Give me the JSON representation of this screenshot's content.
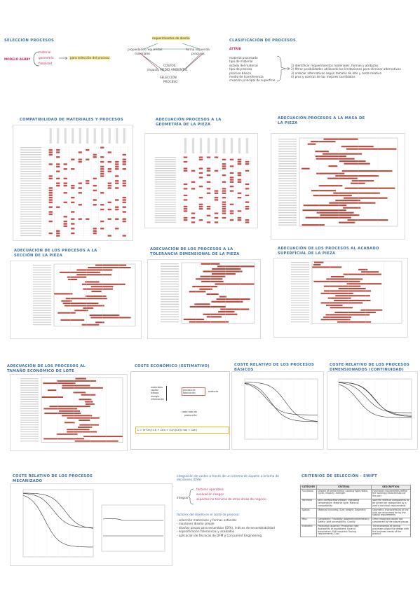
{
  "colors": {
    "heading": "#3b6fa8",
    "bar": "#b5483b",
    "marker": "#c0504d",
    "pink": "#e0507e",
    "green": "#3c8c5a",
    "yellow": "#e0c020"
  },
  "sec1": {
    "title": "SELECCIÓN PROCESOS",
    "modelo": "MODELO ASHBY",
    "items": [
      "material",
      "geometría",
      "fiabilidad"
    ],
    "arrow_note": "para selección del proceso"
  },
  "sec2": {
    "top": "requerimientos de diseño",
    "left": "propiedades requeridas",
    "left2": "materiales",
    "right": "forma requerida",
    "right2": "procesos",
    "costos": "COSTOS",
    "bottom": "impacto MEDIO AMBIENTAL",
    "sel": "SELECCIÓN",
    "sel2": "PROCESO"
  },
  "sec3": {
    "title": "CLASIFICACIÓN DE PROCESOS",
    "sub": "ATTRIB",
    "list": [
      "material procesado",
      "tipo de material",
      "estado del material",
      "tipo de proceso",
      "proceso básico",
      "medio de transferencia",
      "creación principal de superficie"
    ],
    "steps": [
      "1) identificar requerimientos materiales, formas y atributos",
      "2) filtrar posibilidades utilizando las limitaciones para eliminar alternativas",
      "3) ordenar alternativas según tamaño de lote y coste relativo",
      "4) pros y contras de las mejores candidatas"
    ]
  },
  "charts": {
    "c1": {
      "title": "COMPATIBILIDAD DE MATERIALES Y PROCESOS"
    },
    "c2": {
      "title": "ADECUACIÓN PROCESOS A LA GEOMETRÍA DE LA PIEZA"
    },
    "c3": {
      "title": "ADECUACIÓN PROCESOS A LA MASA DE LA PIEZA",
      "xlabel": "Mass (kg)"
    },
    "c4": {
      "title": "ADECUACIÓN DE LOS PROCESOS A LA SECCIÓN DE LA PIEZA",
      "xlabel": "Section thickness (mm)"
    },
    "c5": {
      "title": "ADECUACIÓN DE LOS PROCESOS A LA TOLERANCIA DIMENSIONAL DE LA PIEZA",
      "xlabel": "Tolerance (mm)"
    },
    "c6": {
      "title": "ADECUACIÓN DE LOS PROCESOS AL ACABADO SUPERFICIAL DE LA PIEZA",
      "xlabel": "Roughness (µm)"
    },
    "c7": {
      "title": "ADECUACIÓN DE LOS PROCESOS AL TAMAÑO ECONÓMICO DE LOTE",
      "xlabel": "Economic batch size (units)"
    },
    "c8": {
      "title": "COSTE ECONÓMICO (ESTIMATIVO)"
    },
    "c9": {
      "title": "COSTE RELATIVO DE LOS PROCESOS BÁSICOS"
    },
    "c10": {
      "title": "COSTE RELATIVO DE LOS PROCESOS DIMENSIONADOS (CONTINUIDAD)"
    },
    "c11": {
      "title": "COSTE RELATIVO DE LOS PROCESOS MECANIZADO"
    }
  },
  "cost_box": {
    "items": [
      "materiales",
      "capital",
      "trabajo",
      "energía",
      "información"
    ],
    "center": "proceso de fabricación",
    "right": "producto",
    "below": "coste total de",
    "below2": "producción",
    "formula": "C = m·Cm/(1-f) + Ct/n + (1/ṅ)(Cc/(L·tw) + Coh)"
  },
  "dss": {
    "title": "integración de costes a través de un sistema de soporte a la toma de decisiones (DSS)",
    "integrar": "integrar",
    "items": [
      "factores operables",
      "evaluación riesgos",
      "aspectos no técnicos de otras áreas de negocio"
    ],
    "factores_title": "factores del diseño en el coste de proceso:",
    "factores": [
      "- selección materiales y formas estándar",
      "- mantener diseño simple",
      "- diseñar piezas para ensamblar (DFA), índices de ensamblabilidad",
      "- especificación tolerancias y acabados",
      "- aplicación de técnicas de DFM y Concurrent Engineering"
    ]
  },
  "criterios": {
    "title": "CRITERIOS DE SELECCIÓN - SWIFT",
    "headers": [
      "CATEGORY",
      "CRITERIA",
      "DESCRIPTION"
    ],
    "rows": [
      [
        "Functional",
        "Degree of performance; Loading type (static, cyclic, impact); Strength",
        "Functional requirements define the working characteristics of the part"
      ],
      [
        "Technical",
        "Joint configuration/design; Operating temperature; Material type; Material compatibility",
        "Specific needs of components to be joined are categorised by a joint's technical requirements"
      ],
      [
        "Spatial",
        "Material thickness; Size; weight; Geometry",
        "Geometric characteristics of the joint are accounted for by the spatial requirements"
      ],
      [
        "Misc.",
        "Complexity; Flexibility (assembly/orientation); Safety; Joint accessibility; Quality",
        "Other important issues not considered by the above groups"
      ],
      [
        "Economic",
        "Production quantity; Production rate; Availability of equipment; Ease of automation; Skill required; Tooling requirements; Cost",
        "The economics of joining processes aligns the design with the business needs of the product"
      ]
    ]
  }
}
